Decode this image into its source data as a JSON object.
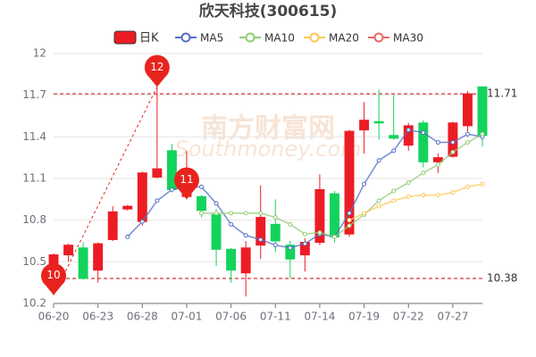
{
  "chart_data": {
    "type": "candlestick",
    "title": "欣天科技(300615)",
    "watermark": [
      "南方财富网",
      "Southmoney.com"
    ],
    "categories": [
      "06-20",
      null,
      null,
      "06-23",
      null,
      null,
      "06-28",
      null,
      null,
      "07-01",
      null,
      null,
      "07-06",
      null,
      null,
      "07-11",
      null,
      null,
      "07-14",
      null,
      null,
      "07-19",
      null,
      null,
      "07-22",
      null,
      null,
      "07-27",
      null,
      null
    ],
    "candles": {
      "name": "日K",
      "up_color": "#ec1c24",
      "down_color": "#14d35c",
      "open": [
        10.45,
        10.55,
        10.6,
        10.44,
        10.66,
        10.88,
        10.79,
        11.11,
        11.3,
        10.97,
        10.97,
        10.84,
        10.59,
        10.42,
        10.62,
        10.77,
        10.62,
        10.55,
        10.64,
        10.99,
        10.7,
        11.45,
        11.51,
        11.41,
        11.34,
        11.5,
        11.22,
        11.26,
        11.48,
        11.76
      ],
      "close": [
        10.55,
        10.62,
        10.38,
        10.63,
        10.86,
        10.9,
        11.14,
        11.17,
        11.02,
        11.05,
        10.87,
        10.59,
        10.44,
        10.6,
        10.82,
        10.65,
        10.52,
        10.64,
        11.02,
        10.68,
        11.44,
        11.52,
        11.5,
        11.39,
        11.48,
        11.22,
        11.25,
        11.5,
        11.71,
        11.41
      ],
      "high": [
        10.56,
        10.63,
        10.64,
        10.64,
        10.9,
        10.91,
        11.15,
        11.76,
        11.35,
        11.3,
        10.98,
        10.88,
        10.6,
        10.65,
        11.05,
        10.95,
        10.65,
        10.67,
        11.13,
        11.01,
        11.45,
        11.65,
        11.74,
        11.7,
        11.5,
        11.52,
        11.28,
        11.51,
        11.73,
        11.76
      ],
      "low": [
        10.26,
        10.5,
        10.37,
        10.35,
        10.65,
        10.87,
        10.76,
        11.1,
        11.0,
        10.95,
        10.82,
        10.47,
        10.35,
        10.25,
        10.52,
        10.57,
        10.38,
        10.43,
        10.62,
        10.64,
        10.68,
        11.28,
        11.38,
        11.38,
        11.3,
        11.18,
        11.14,
        11.25,
        11.4,
        11.33
      ]
    },
    "series": [
      {
        "name": "MA5",
        "color": "#5470c6",
        "values": [
          null,
          null,
          null,
          null,
          null,
          10.68,
          10.79,
          10.94,
          11.02,
          11.04,
          11.04,
          10.92,
          10.77,
          10.69,
          10.66,
          10.62,
          10.6,
          10.63,
          10.7,
          10.68,
          10.85,
          11.06,
          11.23,
          11.3,
          11.45,
          11.43,
          11.36,
          11.36,
          11.42,
          11.4
        ]
      },
      {
        "name": "MA10",
        "color": "#91cc75",
        "values": [
          null,
          null,
          null,
          null,
          null,
          null,
          null,
          null,
          null,
          null,
          10.85,
          10.85,
          10.85,
          10.85,
          10.85,
          10.82,
          10.77,
          10.7,
          10.71,
          10.68,
          10.76,
          10.84,
          10.94,
          11.01,
          11.07,
          11.14,
          11.2,
          11.29,
          11.36,
          11.42
        ]
      },
      {
        "name": "MA20",
        "color": "#fac858",
        "values": [
          null,
          null,
          null,
          null,
          null,
          null,
          null,
          null,
          null,
          null,
          null,
          null,
          null,
          null,
          null,
          null,
          null,
          null,
          null,
          null,
          10.8,
          10.85,
          10.9,
          10.94,
          10.97,
          10.98,
          10.98,
          11.0,
          11.04,
          11.06
        ]
      },
      {
        "name": "MA30",
        "color": "#ee6666",
        "values": [
          null,
          null,
          null,
          null,
          null,
          null,
          null,
          null,
          null,
          null,
          null,
          null,
          null,
          null,
          null,
          null,
          null,
          null,
          null,
          null,
          null,
          null,
          null,
          null,
          null,
          null,
          null,
          null,
          null,
          null
        ]
      }
    ],
    "annotations": [
      "10",
      "12",
      "11"
    ],
    "hlines": [
      11.71,
      10.38
    ],
    "ylim": [
      10.2,
      12
    ],
    "yticks": [
      10.2,
      10.5,
      10.8,
      11.1,
      11.4,
      11.7,
      12
    ],
    "grid": true
  }
}
